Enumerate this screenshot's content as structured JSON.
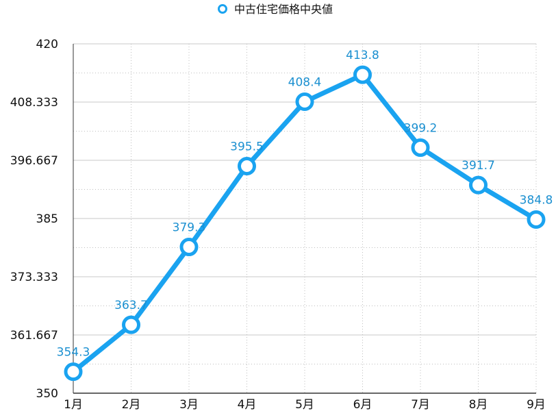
{
  "chart_data": {
    "type": "line",
    "title": "",
    "xlabel": "",
    "ylabel": "",
    "categories": [
      "1月",
      "2月",
      "3月",
      "4月",
      "5月",
      "6月",
      "7月",
      "8月",
      "9月"
    ],
    "series": [
      {
        "name": "中古住宅価格中央値",
        "values": [
          354.3,
          363.7,
          379.3,
          395.5,
          408.4,
          413.8,
          399.2,
          391.7,
          384.8
        ],
        "data_labels": [
          "354.3",
          "363.7",
          "379.3",
          "395.5",
          "408.4",
          "413.8",
          "399.2",
          "391.7",
          "384.8"
        ],
        "color": "#1aa3f0"
      }
    ],
    "ylim": [
      350,
      420
    ],
    "yticks": [
      "350",
      "361.667",
      "373.333",
      "385",
      "396.667",
      "408.333",
      "420"
    ],
    "grid": true,
    "legend": "top-center",
    "label_color": "#1a8fd0"
  }
}
